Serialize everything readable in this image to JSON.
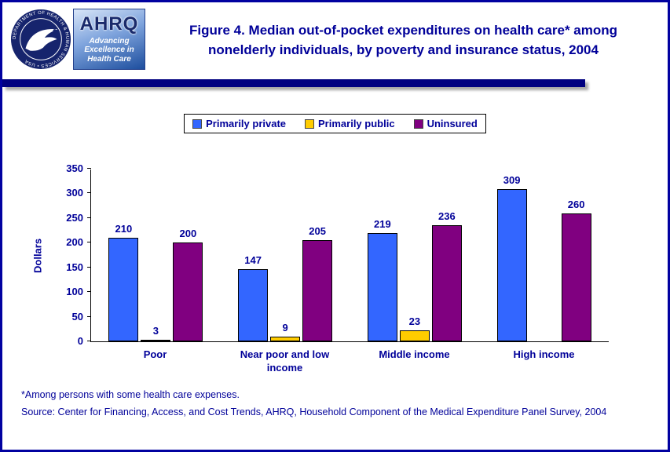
{
  "header": {
    "title_line1": "Figure 4. Median out-of-pocket expenditures on health care* among",
    "title_line2": "nonelderly individuals, by poverty and insurance status, 2004",
    "hhs_seal_text": "DEPARTMENT OF HEALTH & HUMAN SERVICES • USA",
    "ahrq_name": "AHRQ",
    "ahrq_tagline_line1": "Advancing",
    "ahrq_tagline_line2": "Excellence in",
    "ahrq_tagline_line3": "Health Care"
  },
  "chart_data": {
    "type": "bar",
    "title": "Figure 4. Median out-of-pocket expenditures on health care* among nonelderly individuals, by poverty and insurance status, 2004",
    "xlabel": "",
    "ylabel": "Dollars",
    "ylim": [
      0,
      350
    ],
    "ytick_step": 50,
    "grid": false,
    "legend_position": "top",
    "categories": [
      "Poor",
      "Near poor and low income",
      "Middle income",
      "High income"
    ],
    "series": [
      {
        "name": "Primarily private",
        "color": "#3366ff",
        "values": [
          210,
          147,
          219,
          309
        ]
      },
      {
        "name": "Primarily public",
        "color": "#ffcc00",
        "values": [
          3,
          9,
          23,
          null
        ]
      },
      {
        "name": "Uninsured",
        "color": "#800080",
        "values": [
          200,
          205,
          236,
          260
        ]
      }
    ]
  },
  "footnotes": {
    "note": "*Among persons with some health care expenses.",
    "source": "Source: Center for Financing, Access, and Cost Trends, AHRQ, Household Component of the Medical Expenditure Panel Survey, 2004"
  },
  "colors": {
    "text_navy": "#000099",
    "divider": "#000080",
    "page_border": "#0101a0",
    "bar_border": "#000000"
  }
}
